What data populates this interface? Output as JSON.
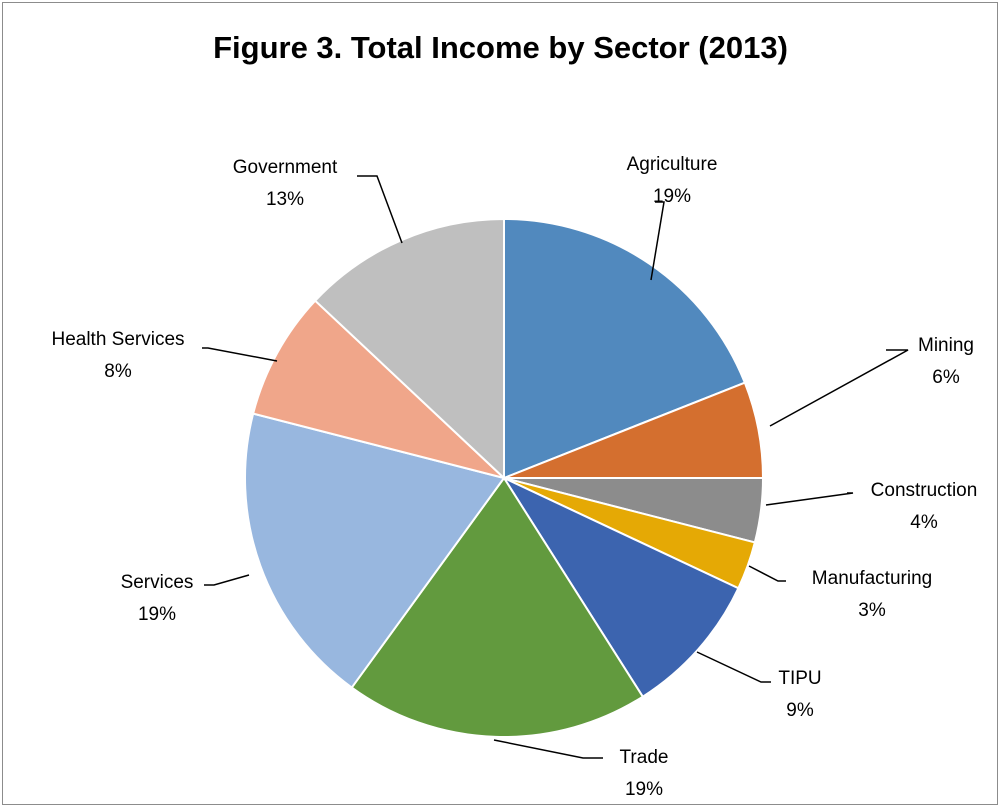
{
  "chart_data": {
    "type": "pie",
    "title": "Figure 3. Total Income by Sector (2013)",
    "slices": [
      {
        "label": "Agriculture",
        "value": 19,
        "pct_label": "19%",
        "color": "#5189BE"
      },
      {
        "label": "Mining",
        "value": 6,
        "pct_label": "6%",
        "color": "#D46F2F"
      },
      {
        "label": "Construction",
        "value": 4,
        "pct_label": "4%",
        "color": "#8C8C8C"
      },
      {
        "label": "Manufacturing",
        "value": 3,
        "pct_label": "3%",
        "color": "#E5A905"
      },
      {
        "label": "TIPU",
        "value": 9,
        "pct_label": "9%",
        "color": "#3C64AF"
      },
      {
        "label": "Trade",
        "value": 19,
        "pct_label": "19%",
        "color": "#629A3E"
      },
      {
        "label": "Services",
        "value": 19,
        "pct_label": "19%",
        "color": "#98B7DF"
      },
      {
        "label": "Health Services",
        "value": 8,
        "pct_label": "8%",
        "color": "#F0A68A"
      },
      {
        "label": "Government",
        "value": 13,
        "pct_label": "13%",
        "color": "#BFBFBF"
      }
    ],
    "legend": "none",
    "data_labels": "outside with leader lines"
  }
}
